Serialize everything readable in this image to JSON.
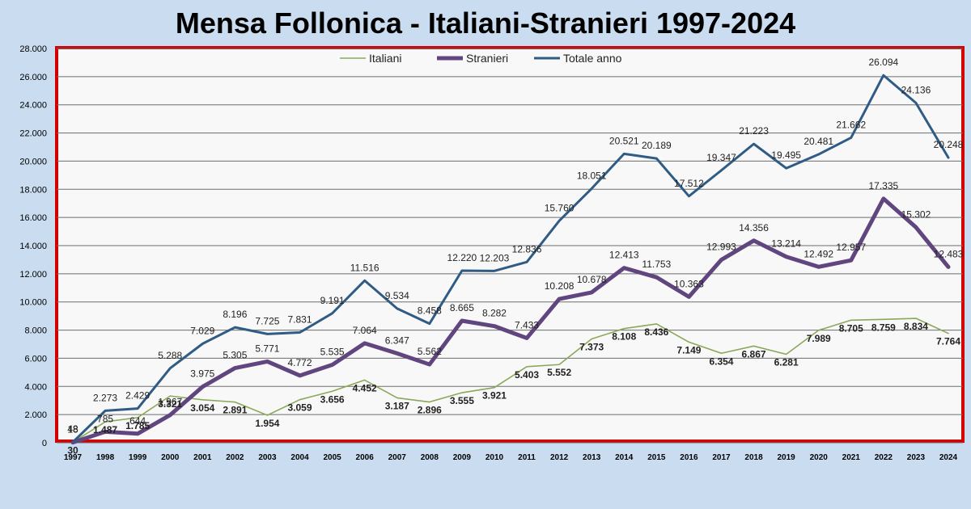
{
  "title": "Mensa Follonica - Italiani-Stranieri 1997-2024",
  "colors": {
    "italiani": "#8aa85a",
    "stranieri": "#60457e",
    "totale": "#2f5b84",
    "frame": "#d40000",
    "background": "#c9dcf0"
  },
  "chart_data": {
    "type": "line",
    "title": "Mensa Follonica - Italiani-Stranieri 1997-2024",
    "x": [
      "1997",
      "1998",
      "1999",
      "2000",
      "2001",
      "2002",
      "2003",
      "2004",
      "2005",
      "2006",
      "2007",
      "2008",
      "2009",
      "2010",
      "2011",
      "2012",
      "2013",
      "2014",
      "2015",
      "2016",
      "2017",
      "2018",
      "2019",
      "2020",
      "2021",
      "2022",
      "2023",
      "2024"
    ],
    "ylim": [
      0,
      28000
    ],
    "yticks": [
      "0",
      "2.000",
      "4.000",
      "6.000",
      "8.000",
      "10.000",
      "12.000",
      "14.000",
      "16.000",
      "18.000",
      "20.000",
      "22.000",
      "24.000",
      "26.000",
      "28.000"
    ],
    "grid": true,
    "legend_position": "top-center",
    "series": [
      {
        "name": "Italiani",
        "values": [
          30,
          1487,
          1785,
          3321,
          3054,
          2891,
          1954,
          3059,
          3656,
          4452,
          3187,
          2896,
          3555,
          3921,
          5403,
          5552,
          7373,
          8108,
          8436,
          7149,
          6354,
          6867,
          6281,
          7989,
          8705,
          8759,
          8834,
          7764
        ],
        "labels": [
          "30",
          "1.487",
          "1.785",
          "3.321",
          "3.054",
          "2.891",
          "1.954",
          "3.059",
          "3.656",
          "4.452",
          "3.187",
          "2.896",
          "3.555",
          "3.921",
          "5.403",
          "5.552",
          "7.373",
          "8.108",
          "8.436",
          "7.149",
          "6.354",
          "6.867",
          "6.281",
          "7.989",
          "8.705",
          "8.759",
          "8.834",
          "7.764"
        ]
      },
      {
        "name": "Stranieri",
        "values": [
          18,
          785,
          644,
          1967,
          3975,
          5305,
          5771,
          4772,
          5535,
          7064,
          6347,
          5562,
          8665,
          8282,
          7433,
          10208,
          10678,
          12413,
          11753,
          10363,
          12993,
          14356,
          13214,
          12492,
          12957,
          17335,
          15302,
          12483
        ],
        "labels": [
          "18",
          "785",
          "644",
          "1.967",
          "3.975",
          "5.305",
          "5.771",
          "4.772",
          "5.535",
          "7.064",
          "6.347",
          "5.562",
          "8.665",
          "8.282",
          "7.433",
          "10.208",
          "10.678",
          "12.413",
          "11.753",
          "10.363",
          "12.993",
          "14.356",
          "13.214",
          "12.492",
          "12.957",
          "17.335",
          "15.302",
          "12.483"
        ]
      },
      {
        "name": "Totale anno",
        "values": [
          48,
          2273,
          2429,
          5288,
          7029,
          8196,
          7725,
          7831,
          9191,
          11516,
          9534,
          8458,
          12220,
          12203,
          12836,
          15760,
          18051,
          20521,
          20189,
          17512,
          19347,
          21223,
          19495,
          20481,
          21662,
          26094,
          24136,
          20248
        ],
        "labels": [
          "48",
          "2.273",
          "2.429",
          "5.288",
          "7.029",
          "8.196",
          "7.725",
          "7.831",
          "9.191",
          "11.516",
          "9.534",
          "8.458",
          "12.220",
          "12.203",
          "12.836",
          "15.760",
          "18.051",
          "20.521",
          "20.189",
          "17.512",
          "19.347",
          "21.223",
          "19.495",
          "20.481",
          "21.662",
          "26.094",
          "24.136",
          "20.248"
        ]
      }
    ]
  }
}
